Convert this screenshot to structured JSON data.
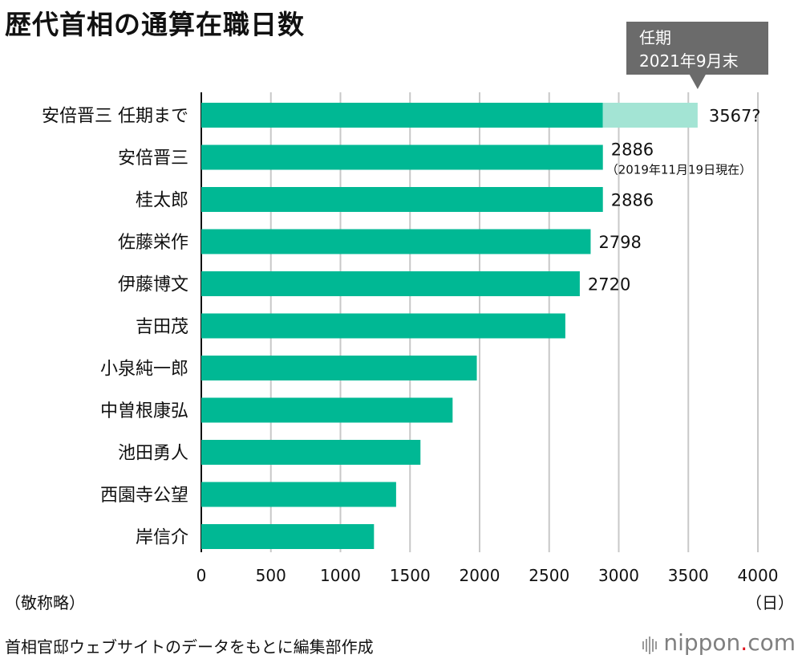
{
  "title": "歴代首相の通算在職日数",
  "note_left": "（敬称略）",
  "note_right": "（日）",
  "source": "首相官邸ウェブサイトのデータをもとに編集部作成",
  "logo": {
    "main": "nippon",
    "dot": ".",
    "suffix": "com"
  },
  "callout": {
    "line1": "任期",
    "line2": "2021年9月末"
  },
  "colors": {
    "bar": "#00b894",
    "bar_light": "#a3e4d4",
    "callout": "#6b6b6b",
    "grid": "#c8c8c8"
  },
  "chart_data": {
    "type": "bar",
    "orientation": "horizontal",
    "title": "歴代首相の通算在職日数",
    "xlabel": "（日）",
    "xlim": [
      0,
      4000
    ],
    "xticks": [
      0,
      500,
      1000,
      1500,
      2000,
      2500,
      3000,
      3500,
      4000
    ],
    "grid": true,
    "categories": [
      "安倍晋三 任期まで",
      "安倍晋三",
      "桂太郎",
      "佐藤栄作",
      "伊藤博文",
      "吉田茂",
      "小泉純一郎",
      "中曽根康弘",
      "池田勇人",
      "西園寺公望",
      "岸信介"
    ],
    "values": [
      3567,
      2886,
      2886,
      2798,
      2720,
      2616,
      1980,
      1806,
      1575,
      1400,
      1241
    ],
    "segments_first_bar": {
      "base": 2886,
      "extension_to": 3567
    },
    "data_labels": [
      "3567?",
      "2886",
      "2886",
      "2798",
      "2720",
      "",
      "",
      "",
      "",
      "",
      ""
    ],
    "annotations": {
      "abe_sub": "（2019年11月19日現在）"
    }
  }
}
